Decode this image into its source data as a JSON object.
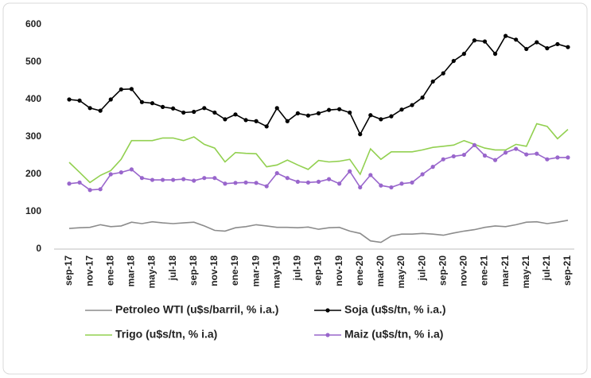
{
  "chart_data": {
    "type": "line",
    "categories": [
      "sep-17",
      null,
      "nov-17",
      null,
      "ene-18",
      null,
      "mar-18",
      null,
      "may-18",
      null,
      "jul-18",
      null,
      "sep-18",
      null,
      "nov-18",
      null,
      "ene-19",
      null,
      "mar-19",
      null,
      "may-19",
      null,
      "jul-19",
      null,
      "sep-19",
      null,
      "nov-19",
      null,
      "ene-20",
      null,
      "mar-20",
      null,
      "may-20",
      null,
      "jul-20",
      null,
      "sep-20",
      null,
      "nov-20",
      null,
      "ene-21",
      null,
      "mar-21",
      null,
      "may-21",
      null,
      "jul-21",
      null,
      "sep-21"
    ],
    "ylim": [
      0,
      600
    ],
    "yticks": [
      0,
      100,
      200,
      300,
      400,
      500,
      600
    ],
    "grid": false,
    "series": [
      {
        "name": "Petroleo WTI (u$s/barril, % i.a.)",
        "color": "#8c8c8c",
        "marker": false,
        "values": [
          55,
          57,
          58,
          65,
          60,
          62,
          72,
          68,
          73,
          70,
          68,
          70,
          72,
          62,
          50,
          48,
          57,
          60,
          65,
          62,
          58,
          58,
          57,
          59,
          53,
          57,
          58,
          48,
          42,
          22,
          18,
          35,
          40,
          40,
          42,
          40,
          37,
          43,
          48,
          52,
          58,
          62,
          60,
          65,
          72,
          73,
          68,
          72,
          77
        ]
      },
      {
        "name": "Soja (u$s/tn, % i.a.)",
        "color": "#000000",
        "marker": true,
        "values": [
          400,
          397,
          377,
          370,
          400,
          427,
          428,
          393,
          390,
          380,
          376,
          365,
          367,
          377,
          365,
          347,
          360,
          345,
          342,
          328,
          377,
          342,
          363,
          357,
          363,
          372,
          374,
          365,
          307,
          358,
          347,
          355,
          373,
          385,
          405,
          448,
          470,
          503,
          522,
          558,
          555,
          522,
          570,
          560,
          535,
          553,
          537,
          548,
          540
        ]
      },
      {
        "name": "Trigo (u$s/tn, % i.a)",
        "color": "#92d050",
        "marker": false,
        "values": [
          232,
          205,
          178,
          197,
          210,
          240,
          290,
          290,
          290,
          297,
          297,
          290,
          300,
          280,
          270,
          233,
          258,
          256,
          255,
          220,
          225,
          238,
          225,
          213,
          237,
          233,
          235,
          240,
          200,
          268,
          240,
          260,
          260,
          260,
          265,
          272,
          275,
          278,
          290,
          280,
          270,
          265,
          265,
          280,
          275,
          335,
          328,
          295,
          320
        ]
      },
      {
        "name": "Maiz  (u$s/tn, % i.a)",
        "color": "#9966cc",
        "marker": true,
        "values": [
          175,
          178,
          158,
          160,
          200,
          205,
          213,
          190,
          185,
          185,
          185,
          187,
          183,
          190,
          190,
          175,
          177,
          178,
          177,
          168,
          203,
          190,
          180,
          178,
          180,
          187,
          175,
          208,
          165,
          198,
          170,
          165,
          175,
          178,
          200,
          220,
          240,
          248,
          252,
          278,
          250,
          238,
          258,
          268,
          253,
          255,
          240,
          245,
          245
        ]
      }
    ]
  }
}
